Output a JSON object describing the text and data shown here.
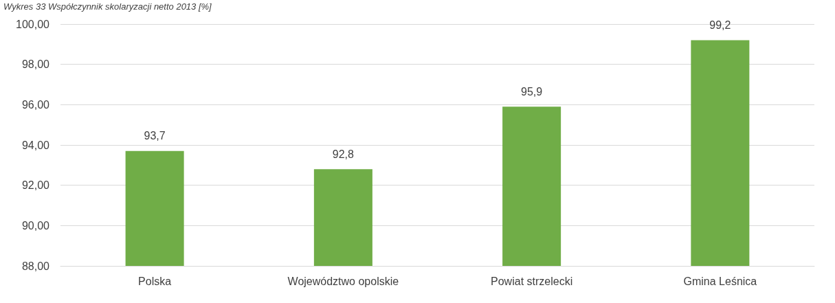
{
  "chart_data": {
    "type": "bar",
    "title": "Wykres 33 Współczynnik skolaryzacji netto 2013 [%]",
    "categories": [
      "Polska",
      "Województwo opolskie",
      "Powiat strzelecki",
      "Gmina Leśnica"
    ],
    "values": [
      93.7,
      92.8,
      95.9,
      99.2
    ],
    "value_labels": [
      "93,7",
      "92,8",
      "95,9",
      "99,2"
    ],
    "color": "#70ad47",
    "ylim": [
      88,
      100
    ],
    "yticks": [
      {
        "value": 88,
        "label": "88,00"
      },
      {
        "value": 90,
        "label": "90,00"
      },
      {
        "value": 92,
        "label": "92,00"
      },
      {
        "value": 94,
        "label": "94,00"
      },
      {
        "value": 96,
        "label": "96,00"
      },
      {
        "value": 98,
        "label": "98,00"
      },
      {
        "value": 100,
        "label": "100,00"
      }
    ],
    "grid": "y"
  }
}
